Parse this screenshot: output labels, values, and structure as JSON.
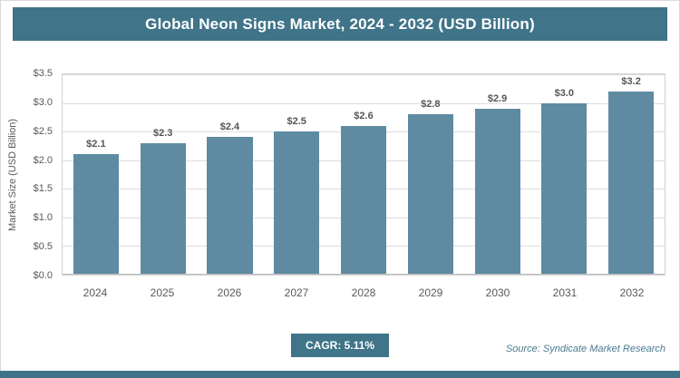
{
  "header": {
    "title": "Global Neon Signs Market, 2024 - 2032 (USD Billion)"
  },
  "chart_data": {
    "type": "bar",
    "title": "Global Neon Signs Market, 2024 - 2032 (USD Billion)",
    "categories": [
      "2024",
      "2025",
      "2026",
      "2027",
      "2028",
      "2029",
      "2030",
      "2031",
      "2032"
    ],
    "values": [
      2.1,
      2.3,
      2.4,
      2.5,
      2.6,
      2.8,
      2.9,
      3.0,
      3.2
    ],
    "value_labels": [
      "$2.1",
      "$2.3",
      "$2.4",
      "$2.5",
      "$2.6",
      "$2.8",
      "$2.9",
      "$3.0",
      "$3.2"
    ],
    "xlabel": "",
    "ylabel": "Market Size (USD Billion)",
    "ylim": [
      0,
      3.5
    ],
    "ytick_step": 0.5,
    "ytick_labels": [
      "$0.0",
      "$0.5",
      "$1.0",
      "$1.5",
      "$2.0",
      "$2.5",
      "$3.0",
      "$3.5"
    ],
    "grid": true,
    "legend": false
  },
  "footer": {
    "cagr_label": "CAGR: 5.11%",
    "source": "Source: Syndicate Market Research"
  },
  "colors": {
    "accent": "#3f7489",
    "bar": "#5e8ba1",
    "grid": "#dcdcdc",
    "tick_text": "#595959"
  }
}
